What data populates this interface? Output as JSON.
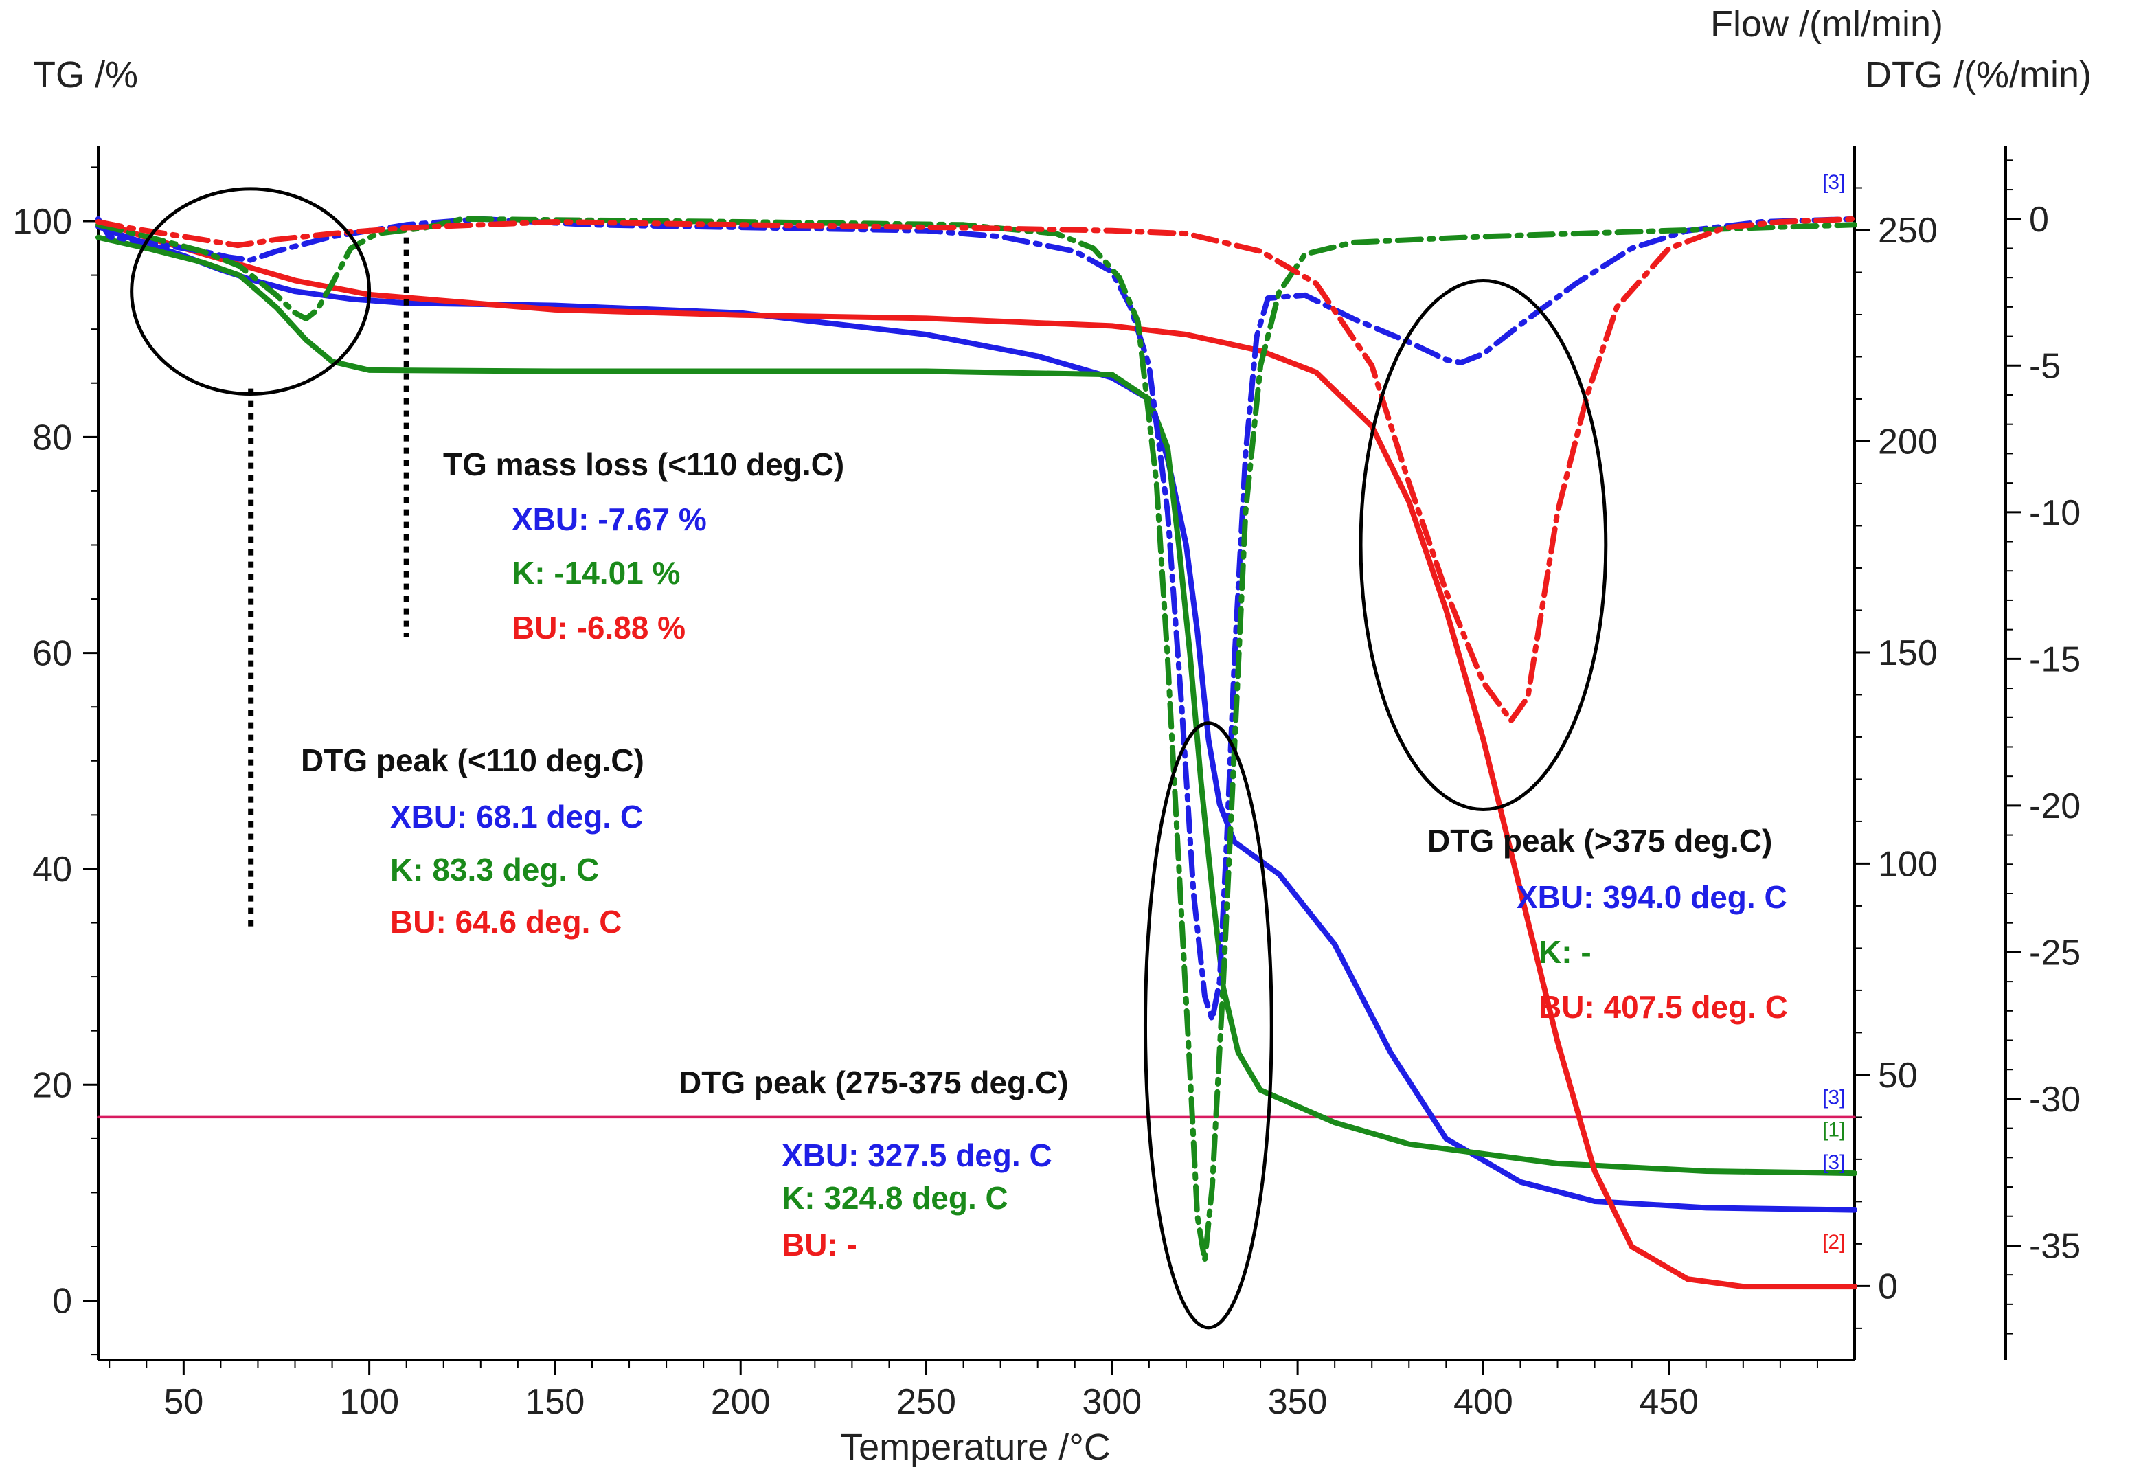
{
  "chart_data": {
    "type": "line",
    "xlabel": "Temperature /°C",
    "y_left_label": "TG /%",
    "y_right1_label": "Flow /(ml/min)",
    "y_right2_label": "DTG /(%/min)",
    "xlim": [
      27,
      500
    ],
    "ylim_tg": [
      -5.5,
      107
    ],
    "ylim_flow": [
      -17.5,
      270
    ],
    "ylim_dtg": [
      -38.9,
      2.5
    ],
    "x_ticks": [
      50,
      100,
      150,
      200,
      250,
      300,
      350,
      400,
      450
    ],
    "tg_ticks": [
      0,
      20,
      40,
      60,
      80,
      100
    ],
    "flow_ticks": [
      0,
      50,
      100,
      150,
      200,
      250
    ],
    "dtg_ticks": [
      0,
      -5,
      -10,
      -15,
      -20,
      -25,
      -30,
      -35
    ],
    "colors": {
      "XBU": "#1f1fe6",
      "K": "#1a8a1a",
      "BU": "#ee1c1c",
      "flow": "#d81b60",
      "black": "#000000"
    },
    "series": [
      {
        "name": "XBU TG",
        "axis": "tg",
        "color": "#1f1fe6",
        "style": "solid",
        "points": [
          [
            27,
            99.5
          ],
          [
            35,
            98.5
          ],
          [
            50,
            96.8
          ],
          [
            60,
            95.5
          ],
          [
            68,
            94.6
          ],
          [
            80,
            93.5
          ],
          [
            95,
            92.8
          ],
          [
            110,
            92.4
          ],
          [
            150,
            92.2
          ],
          [
            200,
            91.5
          ],
          [
            250,
            89.5
          ],
          [
            280,
            87.5
          ],
          [
            300,
            85.5
          ],
          [
            310,
            83.5
          ],
          [
            315,
            78
          ],
          [
            320,
            70
          ],
          [
            323,
            62
          ],
          [
            326,
            52
          ],
          [
            329,
            46
          ],
          [
            333,
            42.5
          ],
          [
            345,
            39.5
          ],
          [
            360,
            33
          ],
          [
            375,
            23
          ],
          [
            390,
            15
          ],
          [
            410,
            11
          ],
          [
            430,
            9.2
          ],
          [
            460,
            8.6
          ],
          [
            500,
            8.4
          ]
        ]
      },
      {
        "name": "K TG",
        "axis": "tg",
        "color": "#1a8a1a",
        "style": "solid",
        "points": [
          [
            27,
            98.5
          ],
          [
            40,
            97.5
          ],
          [
            55,
            96.2
          ],
          [
            65,
            95
          ],
          [
            75,
            92
          ],
          [
            83,
            89
          ],
          [
            90,
            87
          ],
          [
            100,
            86.2
          ],
          [
            150,
            86.1
          ],
          [
            250,
            86.1
          ],
          [
            300,
            85.8
          ],
          [
            310,
            83.5
          ],
          [
            315,
            79
          ],
          [
            318,
            70
          ],
          [
            321,
            60
          ],
          [
            324,
            48
          ],
          [
            327,
            38
          ],
          [
            330,
            29
          ],
          [
            334,
            23
          ],
          [
            340,
            19.5
          ],
          [
            360,
            16.5
          ],
          [
            380,
            14.5
          ],
          [
            420,
            12.7
          ],
          [
            460,
            12
          ],
          [
            500,
            11.8
          ]
        ]
      },
      {
        "name": "BU TG",
        "axis": "tg",
        "color": "#ee1c1c",
        "style": "solid",
        "points": [
          [
            27,
            100
          ],
          [
            40,
            98.5
          ],
          [
            50,
            97.5
          ],
          [
            60,
            96.5
          ],
          [
            65,
            96
          ],
          [
            80,
            94.5
          ],
          [
            100,
            93.2
          ],
          [
            150,
            91.8
          ],
          [
            200,
            91.3
          ],
          [
            250,
            91
          ],
          [
            300,
            90.3
          ],
          [
            320,
            89.5
          ],
          [
            340,
            88
          ],
          [
            355,
            86
          ],
          [
            370,
            81
          ],
          [
            380,
            74
          ],
          [
            390,
            64
          ],
          [
            400,
            52
          ],
          [
            410,
            38
          ],
          [
            420,
            24
          ],
          [
            430,
            12
          ],
          [
            440,
            5
          ],
          [
            455,
            2
          ],
          [
            470,
            1.3
          ],
          [
            500,
            1.3
          ]
        ]
      },
      {
        "name": "XBU DTG",
        "axis": "dtg",
        "color": "#1f1fe6",
        "style": "dashdot",
        "points": [
          [
            27,
            0
          ],
          [
            30,
            -0.6
          ],
          [
            45,
            -0.9
          ],
          [
            55,
            -1.1
          ],
          [
            62,
            -1.3
          ],
          [
            68,
            -1.4
          ],
          [
            75,
            -1.1
          ],
          [
            90,
            -0.6
          ],
          [
            110,
            -0.2
          ],
          [
            130,
            0
          ],
          [
            160,
            -0.2
          ],
          [
            250,
            -0.4
          ],
          [
            270,
            -0.6
          ],
          [
            290,
            -1.1
          ],
          [
            300,
            -1.8
          ],
          [
            305,
            -3
          ],
          [
            310,
            -5
          ],
          [
            315,
            -10
          ],
          [
            319,
            -17
          ],
          [
            322,
            -23
          ],
          [
            325,
            -26.5
          ],
          [
            327,
            -27.3
          ],
          [
            329,
            -26
          ],
          [
            331,
            -21
          ],
          [
            333,
            -15
          ],
          [
            336,
            -8
          ],
          [
            339,
            -4
          ],
          [
            342,
            -2.7
          ],
          [
            352,
            -2.6
          ],
          [
            365,
            -3.4
          ],
          [
            380,
            -4.2
          ],
          [
            390,
            -4.8
          ],
          [
            394,
            -4.9
          ],
          [
            400,
            -4.6
          ],
          [
            410,
            -3.6
          ],
          [
            425,
            -2.2
          ],
          [
            440,
            -1
          ],
          [
            455,
            -0.4
          ],
          [
            475,
            -0.1
          ],
          [
            500,
            0
          ]
        ]
      },
      {
        "name": "K DTG",
        "axis": "dtg",
        "color": "#1a8a1a",
        "style": "dashdot",
        "points": [
          [
            27,
            -0.2
          ],
          [
            40,
            -0.6
          ],
          [
            55,
            -1.1
          ],
          [
            65,
            -1.6
          ],
          [
            75,
            -2.6
          ],
          [
            80,
            -3.2
          ],
          [
            83,
            -3.4
          ],
          [
            86,
            -3.1
          ],
          [
            90,
            -2.2
          ],
          [
            95,
            -1
          ],
          [
            102,
            -0.5
          ],
          [
            115,
            -0.3
          ],
          [
            125,
            0
          ],
          [
            200,
            -0.1
          ],
          [
            260,
            -0.2
          ],
          [
            285,
            -0.5
          ],
          [
            295,
            -1
          ],
          [
            302,
            -2
          ],
          [
            307,
            -3.5
          ],
          [
            312,
            -9
          ],
          [
            315,
            -15
          ],
          [
            318,
            -22
          ],
          [
            321,
            -29
          ],
          [
            323,
            -34
          ],
          [
            325,
            -35.5
          ],
          [
            327,
            -33
          ],
          [
            330,
            -26
          ],
          [
            333,
            -18
          ],
          [
            336,
            -10
          ],
          [
            340,
            -5
          ],
          [
            345,
            -2.5
          ],
          [
            352,
            -1.2
          ],
          [
            365,
            -0.8
          ],
          [
            400,
            -0.6
          ],
          [
            450,
            -0.4
          ],
          [
            500,
            -0.2
          ]
        ]
      },
      {
        "name": "BU DTG",
        "axis": "dtg",
        "color": "#ee1c1c",
        "style": "dashdot",
        "points": [
          [
            27,
            -0.1
          ],
          [
            35,
            -0.3
          ],
          [
            50,
            -0.6
          ],
          [
            64.6,
            -0.9
          ],
          [
            75,
            -0.7
          ],
          [
            90,
            -0.5
          ],
          [
            110,
            -0.3
          ],
          [
            150,
            -0.1
          ],
          [
            200,
            -0.2
          ],
          [
            260,
            -0.3
          ],
          [
            300,
            -0.4
          ],
          [
            320,
            -0.5
          ],
          [
            340,
            -1.1
          ],
          [
            355,
            -2.2
          ],
          [
            370,
            -5
          ],
          [
            380,
            -9
          ],
          [
            390,
            -12.7
          ],
          [
            400,
            -15.8
          ],
          [
            407.5,
            -17.1
          ],
          [
            412,
            -16.3
          ],
          [
            420,
            -10
          ],
          [
            428,
            -6
          ],
          [
            436,
            -3
          ],
          [
            450,
            -1
          ],
          [
            465,
            -0.3
          ],
          [
            480,
            -0.1
          ],
          [
            500,
            0
          ]
        ]
      },
      {
        "name": "Flow",
        "axis": "flow",
        "color": "#d81b60",
        "style": "solid",
        "value": 40,
        "points": [
          [
            27,
            40
          ],
          [
            500,
            40
          ]
        ]
      }
    ],
    "annotations": [
      {
        "key": "tg_loss",
        "title": "TG mass loss (<110 deg.C)",
        "lines": [
          "XBU: -7.67 %",
          "K: -14.01 %",
          "BU: -6.88 %"
        ]
      },
      {
        "key": "dtg_110",
        "title": "DTG peak (<110 deg.C)",
        "lines": [
          "XBU: 68.1 deg. C",
          "K: 83.3 deg. C",
          "BU: 64.6 deg. C"
        ]
      },
      {
        "key": "dtg_275",
        "title": "DTG peak (275-375 deg.C)",
        "lines": [
          "XBU: 327.5 deg. C",
          "K: 324.8 deg. C",
          "BU: -"
        ]
      },
      {
        "key": "dtg_375",
        "title": "DTG peak (>375 deg.C)",
        "lines": [
          "XBU: 394.0 deg. C",
          "K: -",
          "BU: 407.5 deg. C"
        ]
      }
    ],
    "ellipses": [
      {
        "cx": 68,
        "cy_tg": 93.5,
        "rx": 32,
        "ry_tg": 9.5
      },
      {
        "cx": 400,
        "cy_tg": 70,
        "rx": 33,
        "ry_tg": 24.5
      },
      {
        "cx": 326,
        "cy_tg": 25.5,
        "rx": 17,
        "ry_tg": 28
      }
    ],
    "markers": [
      {
        "x": 68.1,
        "from_tg": 84.5,
        "to_tg": 34.5
      },
      {
        "x": 110,
        "from_tg": 98.5,
        "to_tg": 61.5
      }
    ],
    "curve_labels": [
      {
        "text": "[3]",
        "color": "#1f1fe6",
        "x": 497,
        "tg": 103
      },
      {
        "text": "[3]",
        "color": "#1f1fe6",
        "x": 497,
        "tg": 18.2
      },
      {
        "text": "[1]",
        "color": "#1a8a1a",
        "x": 497,
        "tg": 15.2
      },
      {
        "text": "[3]",
        "color": "#1f1fe6",
        "x": 497,
        "tg": 12.2
      },
      {
        "text": "[2]",
        "color": "#ee1c1c",
        "x": 497,
        "tg": 4.8
      }
    ]
  }
}
